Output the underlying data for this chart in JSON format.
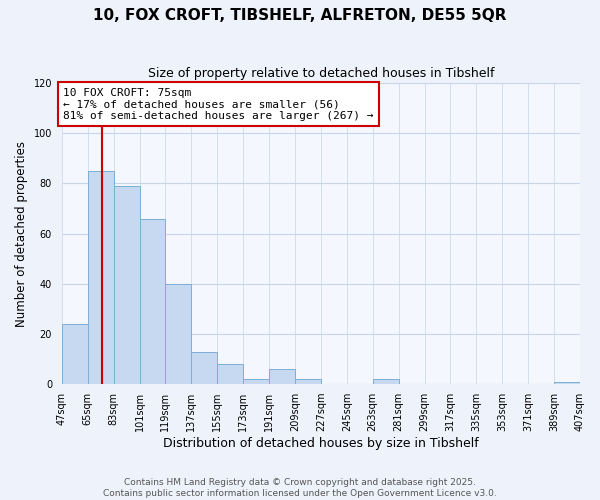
{
  "title": "10, FOX CROFT, TIBSHELF, ALFRETON, DE55 5QR",
  "subtitle": "Size of property relative to detached houses in Tibshelf",
  "xlabel": "Distribution of detached houses by size in Tibshelf",
  "ylabel": "Number of detached properties",
  "bins": [
    47,
    65,
    83,
    101,
    119,
    137,
    155,
    173,
    191,
    209,
    227,
    245,
    263,
    281,
    299,
    317,
    335,
    353,
    371,
    389,
    407
  ],
  "counts": [
    24,
    85,
    79,
    66,
    40,
    13,
    8,
    2,
    6,
    2,
    0,
    0,
    2,
    0,
    0,
    0,
    0,
    0,
    0,
    1
  ],
  "bar_color": "#c6d9f0",
  "bar_edge_color": "#7aafd4",
  "vline_x": 75,
  "vline_color": "#cc0000",
  "ylim": [
    0,
    120
  ],
  "yticks": [
    0,
    20,
    40,
    60,
    80,
    100,
    120
  ],
  "annotation_text": "10 FOX CROFT: 75sqm\n← 17% of detached houses are smaller (56)\n81% of semi-detached houses are larger (267) →",
  "annotation_box_color": "#ffffff",
  "annotation_box_edge": "#cc0000",
  "annotation_fontsize": 8,
  "tick_labels": [
    "47sqm",
    "65sqm",
    "83sqm",
    "101sqm",
    "119sqm",
    "137sqm",
    "155sqm",
    "173sqm",
    "191sqm",
    "209sqm",
    "227sqm",
    "245sqm",
    "263sqm",
    "281sqm",
    "299sqm",
    "317sqm",
    "335sqm",
    "353sqm",
    "371sqm",
    "389sqm",
    "407sqm"
  ],
  "footer1": "Contains HM Land Registry data © Crown copyright and database right 2025.",
  "footer2": "Contains public sector information licensed under the Open Government Licence v3.0.",
  "bg_color": "#eef2fb",
  "plot_bg_color": "#f4f7fd",
  "grid_color": "#c8d4e8",
  "title_fontsize": 11,
  "subtitle_fontsize": 9,
  "xlabel_fontsize": 9,
  "ylabel_fontsize": 8.5,
  "tick_fontsize": 7,
  "footer_fontsize": 6.5
}
